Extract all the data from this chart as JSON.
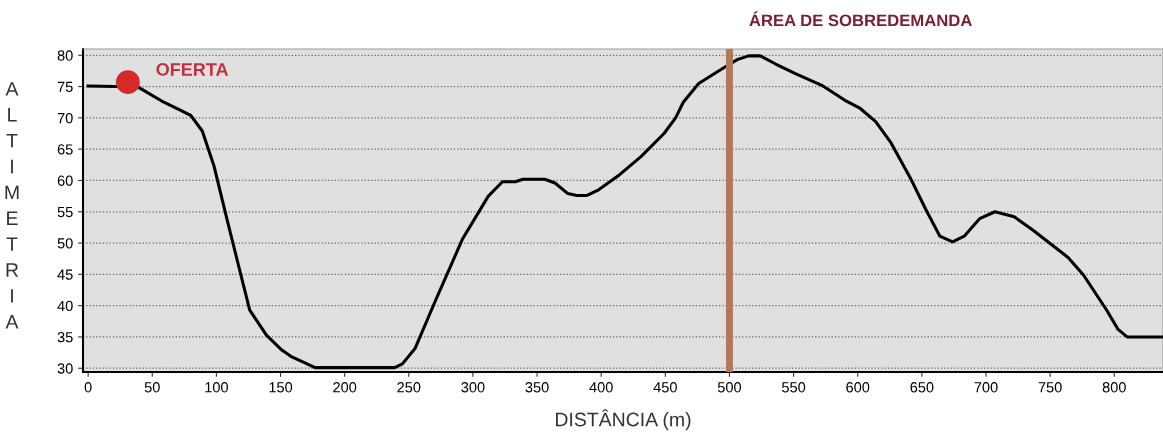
{
  "chart_data": {
    "type": "line",
    "xlabel": "DISTÂNCIA (m)",
    "ylabel": "ALTIMETRIA",
    "xlim": [
      -4,
      838
    ],
    "ylim": [
      29.4,
      81
    ],
    "xticks": [
      0,
      50,
      100,
      150,
      200,
      250,
      300,
      350,
      400,
      450,
      500,
      550,
      600,
      650,
      700,
      750,
      800
    ],
    "yticks": [
      30,
      35,
      40,
      45,
      50,
      55,
      60,
      65,
      70,
      75,
      80
    ],
    "grid": "y",
    "legend": false,
    "line_style": "solid",
    "series": [
      {
        "color": "#000000",
        "x": [
          0,
          21,
          40,
          59,
          71,
          80,
          89,
          98,
          109,
          118,
          126,
          139,
          151,
          158,
          177,
          239,
          245,
          255,
          271,
          292,
          312,
          323,
          333,
          339,
          356,
          364,
          374,
          381,
          389,
          398,
          413,
          431,
          449,
          458,
          464,
          476,
          494,
          506,
          515,
          524,
          536,
          551,
          572,
          590,
          602,
          614,
          626,
          641,
          653,
          664,
          674,
          683,
          695,
          707,
          722,
          737,
          752,
          764,
          776,
          794,
          803,
          810,
          838
        ],
        "values": [
          75.1,
          75,
          74.8,
          72.5,
          71.3,
          70.4,
          67.9,
          62.4,
          53.2,
          45.8,
          39.3,
          35.3,
          32.9,
          31.9,
          30.1,
          30.1,
          30.7,
          33.2,
          40.9,
          50.7,
          57.5,
          59.8,
          59.8,
          60.2,
          60.2,
          59.6,
          57.9,
          57.6,
          57.6,
          58.5,
          60.7,
          63.8,
          67.5,
          70,
          72.5,
          75.5,
          77.8,
          79.3,
          79.9,
          79.9,
          78.6,
          77.1,
          75.2,
          72.8,
          71.5,
          69.4,
          66,
          60.4,
          55.4,
          51.1,
          50.2,
          51.1,
          53.9,
          55,
          54.2,
          52,
          49.6,
          47.7,
          44.9,
          39.3,
          36.2,
          35,
          35
        ]
      },
      {
        "type": "scatter",
        "marker": "circle",
        "color": "#d42a2a",
        "x": [
          31
        ],
        "values": [
          75.7
        ]
      }
    ],
    "ref_lines": [
      {
        "axis": "x",
        "value": 500,
        "label": "ÁREA DE SOBREDEMANDA",
        "color": "#b07a5a"
      }
    ],
    "annotations": [
      {
        "text": "OFERTA",
        "x": 31,
        "y": 75.7
      }
    ]
  }
}
